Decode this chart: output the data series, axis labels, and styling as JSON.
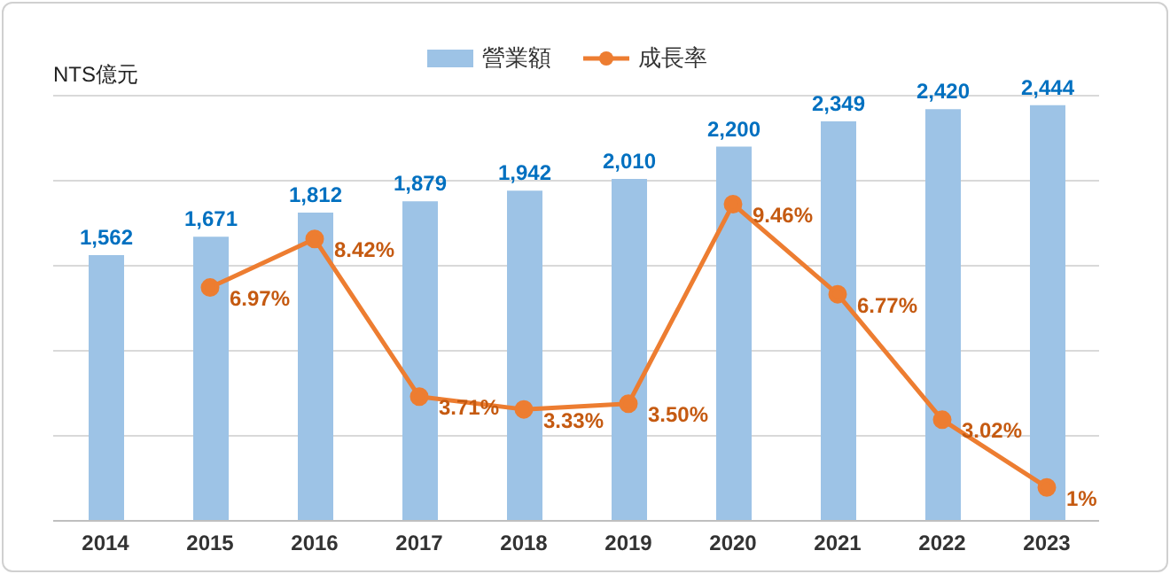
{
  "chart_data": {
    "type": "bar",
    "ylabel": "NTS億元",
    "categories": [
      "2014",
      "2015",
      "2016",
      "2017",
      "2018",
      "2019",
      "2020",
      "2021",
      "2022",
      "2023"
    ],
    "series": [
      {
        "name": "營業額",
        "color": "#9dc3e6",
        "values": [
          1562,
          1671,
          1812,
          1879,
          1942,
          2010,
          2200,
          2349,
          2420,
          2444
        ],
        "value_labels": [
          "1,562",
          "1,671",
          "1,812",
          "1,879",
          "1,942",
          "2,010",
          "2,200",
          "2,349",
          "2,420",
          "2,444"
        ]
      },
      {
        "name": "成長率",
        "type": "line",
        "axis": "y2",
        "color": "#ed7d31",
        "marker": "circle",
        "values": [
          null,
          6.97,
          8.42,
          3.71,
          3.33,
          3.5,
          9.46,
          6.77,
          3.02,
          1
        ],
        "value_labels": [
          null,
          "6.97%",
          "8.42%",
          "3.71%",
          "3.33%",
          "3.50%",
          "9.46%",
          "6.77%",
          "3.02%",
          "1%"
        ]
      }
    ],
    "ylim": [
      0,
      2500
    ],
    "y2lim": [
      0,
      12.7
    ],
    "grid": "y",
    "legend": "top",
    "tick_labels": "x"
  }
}
